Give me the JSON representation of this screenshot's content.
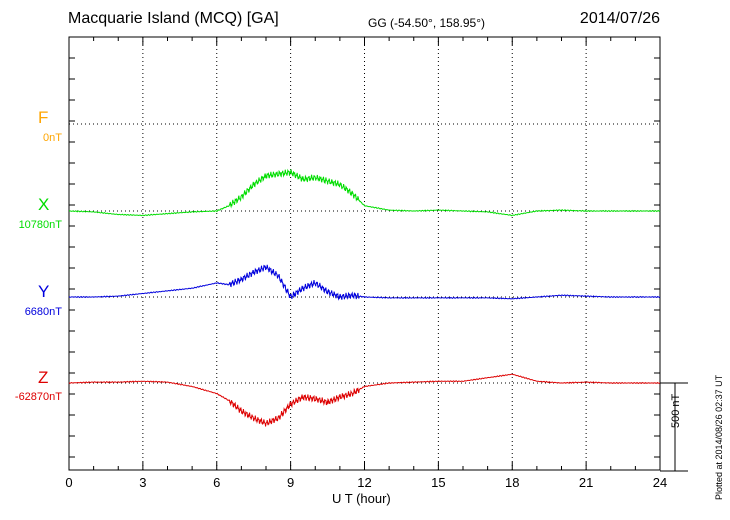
{
  "header": {
    "station": "Macquarie Island (MCQ)  [GA]",
    "coords": "GG (-54.50°, 158.95°)",
    "date": "2014/07/26"
  },
  "side_note": "Plotted at 2014/08/26 02:37 UT",
  "chart_data": {
    "type": "line",
    "xlabel": "U T (hour)",
    "xlim": [
      0,
      24
    ],
    "xticks": [
      0,
      3,
      6,
      9,
      12,
      15,
      18,
      21,
      24
    ],
    "grid": true,
    "scale_bar": "500 nT",
    "colors": {
      "F": "#ffa500",
      "X": "#00dd00",
      "Y": "#0000dd",
      "Z": "#dd0000"
    },
    "series": [
      {
        "name": "F",
        "baseline": "0nT",
        "x": [],
        "y": []
      },
      {
        "name": "X",
        "baseline": "10780nT",
        "x": [
          0,
          1,
          2,
          3,
          4,
          5,
          6,
          6.5,
          7,
          7.5,
          8,
          8.5,
          9,
          9.5,
          10,
          10.5,
          11,
          11.5,
          12,
          13,
          14,
          15,
          16,
          17,
          18,
          19,
          20,
          21,
          22,
          23,
          24
        ],
        "y": [
          0,
          -5,
          -20,
          -25,
          -15,
          -5,
          0,
          30,
          80,
          150,
          200,
          210,
          220,
          180,
          190,
          170,
          150,
          100,
          30,
          5,
          0,
          5,
          0,
          -5,
          -25,
          0,
          5,
          0,
          0,
          0,
          0
        ]
      },
      {
        "name": "Y",
        "baseline": "6680nT",
        "x": [
          0,
          1,
          2,
          3,
          4,
          5,
          6,
          6.5,
          7,
          7.5,
          8,
          8.5,
          9,
          9.5,
          10,
          10.5,
          11,
          11.5,
          12,
          13,
          14,
          15,
          16,
          17,
          18,
          19,
          20,
          21,
          22,
          23,
          24
        ],
        "y": [
          0,
          0,
          5,
          20,
          35,
          50,
          80,
          70,
          100,
          140,
          170,
          120,
          0,
          50,
          80,
          30,
          0,
          10,
          0,
          -5,
          -5,
          -5,
          -5,
          -5,
          -10,
          0,
          10,
          5,
          0,
          0,
          0
        ]
      },
      {
        "name": "Z",
        "baseline": "-62870nT",
        "x": [
          0,
          1,
          2,
          3,
          4,
          5,
          6,
          6.5,
          7,
          7.5,
          8,
          8.5,
          9,
          9.5,
          10,
          10.5,
          11,
          11.5,
          12,
          13,
          14,
          15,
          16,
          17,
          18,
          19,
          20,
          21,
          22,
          23,
          24
        ],
        "y": [
          0,
          5,
          5,
          10,
          5,
          -20,
          -60,
          -100,
          -160,
          -200,
          -230,
          -200,
          -120,
          -80,
          -90,
          -110,
          -80,
          -60,
          -20,
          0,
          5,
          10,
          10,
          30,
          50,
          10,
          0,
          5,
          0,
          0,
          0
        ]
      }
    ]
  }
}
